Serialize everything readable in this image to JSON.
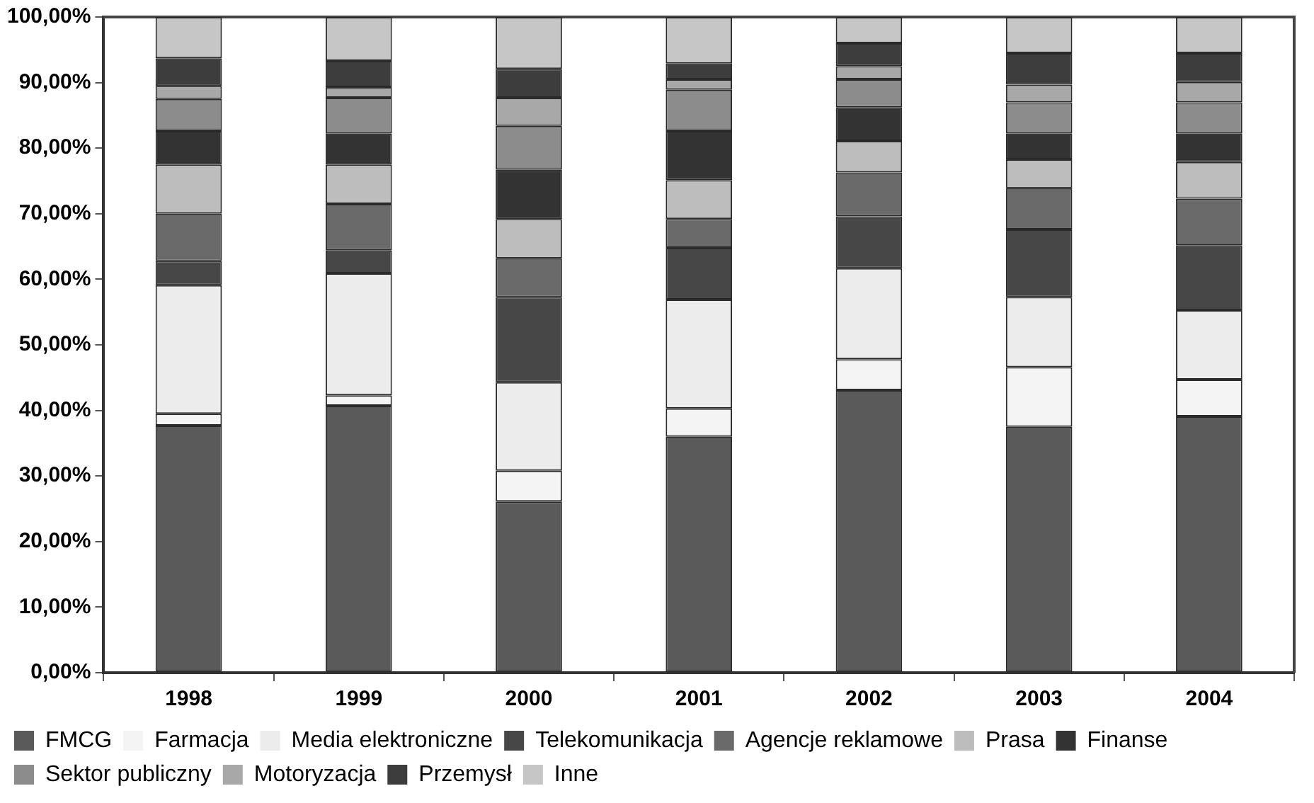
{
  "chart_data": {
    "type": "bar",
    "stacked": true,
    "categories": [
      "1998",
      "1999",
      "2000",
      "2001",
      "2002",
      "2003",
      "2004"
    ],
    "series": [
      {
        "name": "FMCG",
        "color": "#5a5a5a",
        "values": [
          37.7,
          40.7,
          26.1,
          36.0,
          43.1,
          37.5,
          39.1
        ]
      },
      {
        "name": "Farmacja",
        "color": "#f4f4f4",
        "values": [
          1.8,
          1.6,
          4.7,
          4.3,
          4.7,
          9.1,
          5.6
        ]
      },
      {
        "name": "Media elektroniczne",
        "color": "#ececec",
        "values": [
          19.6,
          18.6,
          13.5,
          16.6,
          13.9,
          10.7,
          10.6
        ]
      },
      {
        "name": "Telekomunikacja",
        "color": "#474747",
        "values": [
          3.7,
          3.5,
          13.0,
          7.9,
          7.9,
          10.3,
          9.9
        ]
      },
      {
        "name": "Agencje reklamowe",
        "color": "#6a6a6a",
        "values": [
          7.2,
          7.1,
          5.9,
          4.4,
          6.7,
          6.3,
          7.1
        ]
      },
      {
        "name": "Prasa",
        "color": "#bdbdbd",
        "values": [
          7.5,
          6.0,
          6.0,
          5.9,
          4.8,
          4.4,
          5.6
        ]
      },
      {
        "name": "Finanse",
        "color": "#333333",
        "values": [
          5.1,
          4.7,
          7.5,
          7.5,
          5.1,
          3.9,
          4.3
        ]
      },
      {
        "name": "Sektor publiczny",
        "color": "#8c8c8c",
        "values": [
          4.9,
          5.5,
          6.7,
          6.3,
          4.3,
          4.8,
          4.8
        ]
      },
      {
        "name": "Motoryzacja",
        "color": "#a8a8a8",
        "values": [
          2.0,
          1.6,
          4.3,
          1.6,
          2.0,
          2.7,
          3.1
        ]
      },
      {
        "name": "Przemysł",
        "color": "#3d3d3d",
        "values": [
          4.2,
          4.0,
          4.4,
          2.4,
          3.5,
          4.8,
          4.4
        ]
      },
      {
        "name": "Inne",
        "color": "#c6c6c6",
        "values": [
          6.3,
          6.7,
          7.9,
          7.1,
          4.0,
          5.5,
          5.5
        ]
      }
    ],
    "ylim": [
      0,
      100
    ],
    "yticks": [
      {
        "value": 0,
        "label": "0,00%"
      },
      {
        "value": 10,
        "label": "10,00%"
      },
      {
        "value": 20,
        "label": "20,00%"
      },
      {
        "value": 30,
        "label": "30,00%"
      },
      {
        "value": 40,
        "label": "40,00%"
      },
      {
        "value": 50,
        "label": "50,00%"
      },
      {
        "value": 60,
        "label": "60,00%"
      },
      {
        "value": 70,
        "label": "70,00%"
      },
      {
        "value": 80,
        "label": "80,00%"
      },
      {
        "value": 90,
        "label": "90,00%"
      },
      {
        "value": 100,
        "label": "100,00%"
      }
    ],
    "grid": false,
    "legend": "bottom"
  }
}
